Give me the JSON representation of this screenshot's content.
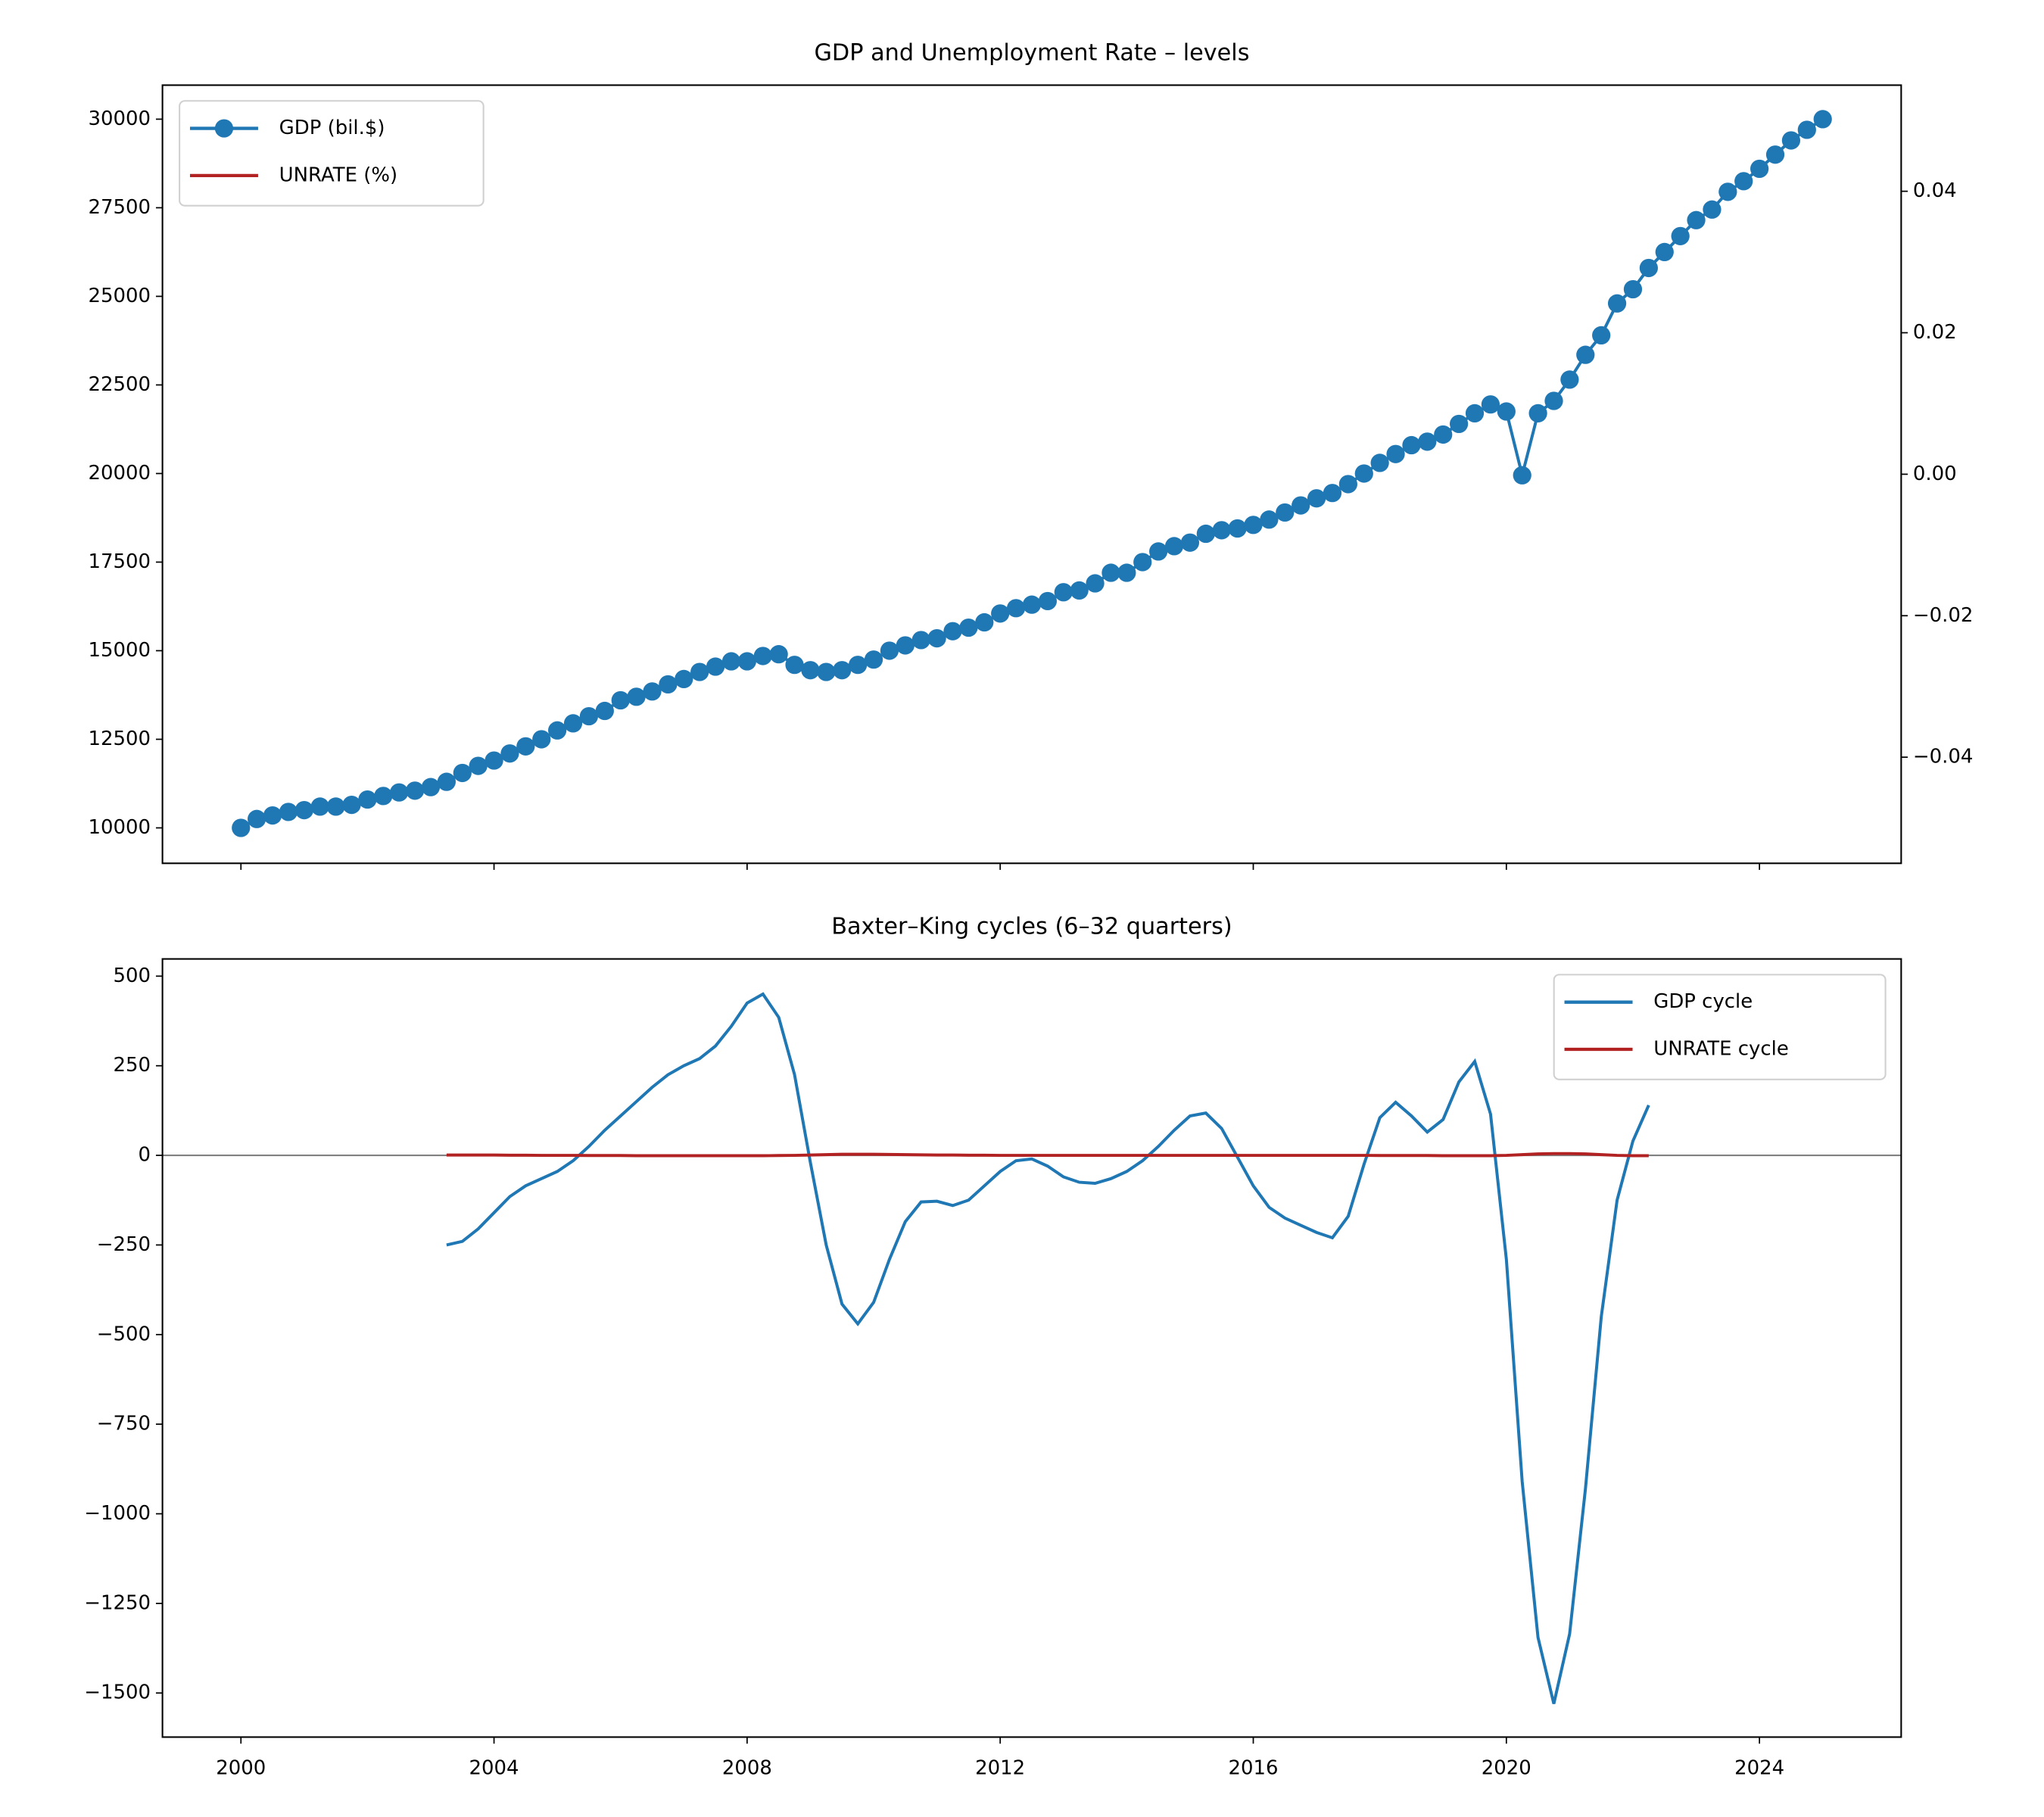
{
  "chart_data": [
    {
      "type": "line",
      "title": "GDP and Unemployment Rate – levels",
      "x": [
        2000,
        2000.25,
        2000.5,
        2000.75,
        2001,
        2001.25,
        2001.5,
        2001.75,
        2002,
        2002.25,
        2002.5,
        2002.75,
        2003,
        2003.25,
        2003.5,
        2003.75,
        2004,
        2004.25,
        2004.5,
        2004.75,
        2005,
        2005.25,
        2005.5,
        2005.75,
        2006,
        2006.25,
        2006.5,
        2006.75,
        2007,
        2007.25,
        2007.5,
        2007.75,
        2008,
        2008.25,
        2008.5,
        2008.75,
        2009,
        2009.25,
        2009.5,
        2009.75,
        2010,
        2010.25,
        2010.5,
        2010.75,
        2011,
        2011.25,
        2011.5,
        2011.75,
        2012,
        2012.25,
        2012.5,
        2012.75,
        2013,
        2013.25,
        2013.5,
        2013.75,
        2014,
        2014.25,
        2014.5,
        2014.75,
        2015,
        2015.25,
        2015.5,
        2015.75,
        2016,
        2016.25,
        2016.5,
        2016.75,
        2017,
        2017.25,
        2017.5,
        2017.75,
        2018,
        2018.25,
        2018.5,
        2018.75,
        2019,
        2019.25,
        2019.5,
        2019.75,
        2020,
        2020.25,
        2020.5,
        2020.75,
        2021,
        2021.25,
        2021.5,
        2021.75,
        2022,
        2022.25,
        2022.5,
        2022.75,
        2023,
        2023.25,
        2023.5,
        2023.75,
        2024,
        2024.25,
        2024.5,
        2024.75,
        2025
      ],
      "series": [
        {
          "name": "GDP (bil.$)",
          "color": "#1f77b4",
          "marker": true,
          "values": [
            10000,
            10250,
            10350,
            10450,
            10500,
            10600,
            10600,
            10650,
            10800,
            10900,
            11000,
            11050,
            11150,
            11300,
            11550,
            11750,
            11900,
            12100,
            12300,
            12500,
            12750,
            12950,
            13150,
            13300,
            13600,
            13700,
            13850,
            14050,
            14200,
            14400,
            14550,
            14700,
            14700,
            14850,
            14900,
            14600,
            14450,
            14400,
            14450,
            14600,
            14750,
            15000,
            15150,
            15300,
            15350,
            15550,
            15650,
            15800,
            16050,
            16200,
            16300,
            16400,
            16650,
            16700,
            16900,
            17200,
            17200,
            17500,
            17800,
            17950,
            18050,
            18300,
            18400,
            18450,
            18550,
            18700,
            18900,
            19100,
            19300,
            19450,
            19700,
            20000,
            20300,
            20550,
            20800,
            20900,
            21100,
            21400,
            21700,
            21950,
            21750,
            19950,
            21700,
            22050,
            22650,
            23350,
            23900,
            24800,
            25200,
            25800,
            26250,
            26700,
            27150,
            27450,
            27950,
            28250,
            28600,
            29000,
            29400,
            29700,
            30000
          ]
        },
        {
          "name": "UNRATE (%)",
          "color": "#b22222",
          "axis": "y2",
          "values": [
            null,
            null,
            null,
            null,
            null,
            null,
            null,
            null,
            null,
            null,
            null,
            null,
            null,
            null,
            null,
            null,
            null,
            null,
            null,
            null,
            null,
            null,
            null,
            null,
            null,
            null,
            null,
            null,
            null,
            null,
            null,
            null,
            null,
            null,
            null,
            null,
            null,
            null,
            null,
            null,
            null,
            null,
            null,
            null,
            null,
            null,
            null,
            null,
            null,
            null,
            null,
            null,
            null,
            null,
            null,
            null,
            null,
            null,
            null,
            null,
            null,
            null,
            null,
            null,
            null,
            null,
            null,
            null,
            null,
            null,
            null,
            null,
            null,
            null,
            null,
            null,
            null,
            null,
            null,
            null,
            null,
            null,
            null,
            null,
            null,
            null,
            null,
            null,
            null,
            null,
            null,
            null,
            null,
            null,
            null,
            null,
            null,
            null,
            null,
            null,
            null
          ]
        }
      ],
      "xlim": [
        1998.76,
        2026.24
      ],
      "xticks": [
        2000,
        2004,
        2008,
        2012,
        2016,
        2020,
        2024
      ],
      "show_xtick_labels": false,
      "ylim": [
        9000,
        30960
      ],
      "yticks": [
        10000,
        12500,
        15000,
        17500,
        20000,
        22500,
        25000,
        27500,
        30000
      ],
      "y2lim": [
        -0.055,
        0.055
      ],
      "y2ticks": [
        {
          "value": -0.04,
          "label": "−0.04"
        },
        {
          "value": -0.02,
          "label": "−0.02"
        },
        {
          "value": 0,
          "label": "0.00"
        },
        {
          "value": 0.02,
          "label": "0.02"
        },
        {
          "value": 0.04,
          "label": "0.04"
        }
      ],
      "legend": "upper left"
    },
    {
      "type": "line",
      "title": "Baxter–King cycles (6–32 quarters)",
      "x": [
        2003.25,
        2003.5,
        2003.75,
        2004,
        2004.25,
        2004.5,
        2004.75,
        2005,
        2005.25,
        2005.5,
        2005.75,
        2006,
        2006.25,
        2006.5,
        2006.75,
        2007,
        2007.25,
        2007.5,
        2007.75,
        2008,
        2008.25,
        2008.5,
        2008.75,
        2009,
        2009.25,
        2009.5,
        2009.75,
        2010,
        2010.25,
        2010.5,
        2010.75,
        2011,
        2011.25,
        2011.5,
        2011.75,
        2012,
        2012.25,
        2012.5,
        2012.75,
        2013,
        2013.25,
        2013.5,
        2013.75,
        2014,
        2014.25,
        2014.5,
        2014.75,
        2015,
        2015.25,
        2015.5,
        2015.75,
        2016,
        2016.25,
        2016.5,
        2016.75,
        2017,
        2017.25,
        2017.5,
        2017.75,
        2018,
        2018.25,
        2018.5,
        2018.75,
        2019,
        2019.25,
        2019.5,
        2019.75,
        2020,
        2020.25,
        2020.5,
        2020.75,
        2021,
        2021.25,
        2021.5,
        2021.75,
        2022,
        2022.25
      ],
      "series": [
        {
          "name": "GDP cycle",
          "color": "#1f77b4",
          "values": [
            -250,
            -240,
            -205,
            -160,
            -115,
            -85,
            -65,
            -45,
            -15,
            25,
            70,
            110,
            150,
            190,
            225,
            250,
            270,
            305,
            360,
            425,
            450,
            385,
            225,
            -20,
            -250,
            -415,
            -470,
            -410,
            -290,
            -185,
            -130,
            -128,
            -140,
            -125,
            -85,
            -45,
            -15,
            -10,
            -30,
            -60,
            -75,
            -78,
            -65,
            -45,
            -15,
            25,
            70,
            110,
            118,
            75,
            -5,
            -85,
            -145,
            -175,
            -195,
            -215,
            -230,
            -170,
            -25,
            105,
            148,
            110,
            65,
            100,
            205,
            262,
            115,
            -290,
            -910,
            -1345,
            -1530,
            -1335,
            -930,
            -450,
            -125,
            40,
            140
          ]
        },
        {
          "name": "UNRATE cycle",
          "color": "#b22222",
          "values": [
            1,
            1,
            1,
            1,
            0.5,
            0.5,
            0,
            0,
            0,
            -0.5,
            -0.5,
            -0.5,
            -1,
            -1,
            -1,
            -1,
            -1,
            -1,
            -1,
            -1,
            -1,
            -0.5,
            0,
            1,
            2,
            3,
            3,
            3,
            2.5,
            2,
            1.5,
            1,
            1,
            0.5,
            0.5,
            0,
            0,
            0,
            0,
            0,
            0,
            0,
            0,
            0,
            0,
            0,
            0,
            0,
            0,
            0,
            0,
            0,
            0,
            0,
            0,
            0,
            0,
            0,
            0,
            -0.5,
            -0.5,
            -0.5,
            -0.5,
            -1,
            -1,
            -1,
            -1,
            0,
            2,
            4,
            5,
            5,
            4,
            2,
            0,
            -1,
            -1
          ]
        }
      ],
      "hline": 0,
      "xlim": [
        1998.76,
        2026.24
      ],
      "xticks": [
        2000,
        2004,
        2008,
        2012,
        2016,
        2020,
        2024
      ],
      "show_xtick_labels": true,
      "ylim": [
        -1623,
        548
      ],
      "yticks": [
        {
          "value": -1500,
          "label": "−1500"
        },
        {
          "value": -1250,
          "label": "−1250"
        },
        {
          "value": -1000,
          "label": "−1000"
        },
        {
          "value": -750,
          "label": "−750"
        },
        {
          "value": -500,
          "label": "−500"
        },
        {
          "value": -250,
          "label": "−250"
        },
        0,
        250,
        500
      ],
      "legend": "upper right"
    }
  ]
}
